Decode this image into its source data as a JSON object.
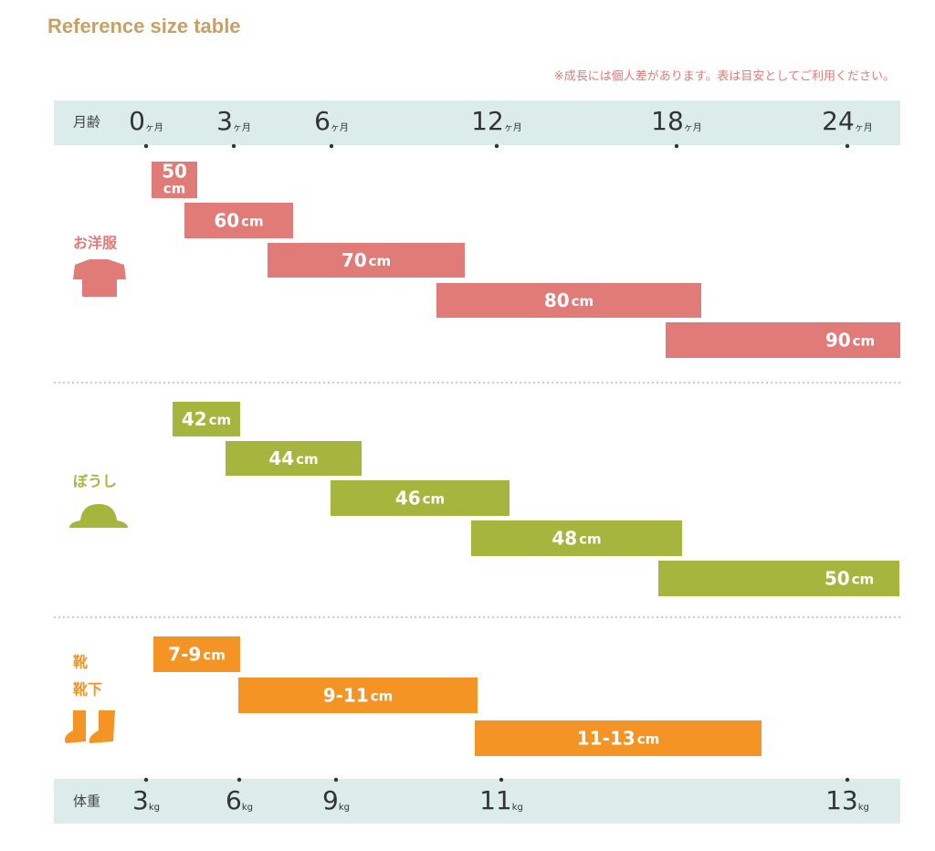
{
  "header": {
    "title": "Reference size table",
    "note": "※成長には個人差があります。表は目安としてご利用ください。"
  },
  "age_axis": {
    "label": "月齢",
    "unit": "ヶ月",
    "ticks": [
      "0",
      "3",
      "6",
      "12",
      "18",
      "24"
    ]
  },
  "sections": [
    {
      "label": [
        "お洋服"
      ],
      "unit": "cm",
      "bars": [
        "50",
        "60",
        "70",
        "80",
        "90"
      ]
    },
    {
      "label": [
        "ぼうし"
      ],
      "unit": "cm",
      "bars": [
        "42",
        "44",
        "46",
        "48",
        "50"
      ]
    },
    {
      "label": [
        "靴",
        "靴下"
      ],
      "unit": "cm",
      "bars": [
        "7-9",
        "9-11",
        "11-13"
      ]
    }
  ],
  "weight_axis": {
    "label": "体重",
    "unit": "kg",
    "ticks": [
      "3",
      "6",
      "9",
      "11",
      "13"
    ]
  }
}
